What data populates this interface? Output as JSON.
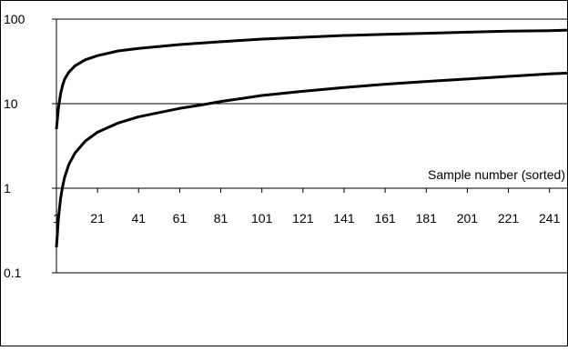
{
  "chart_data": {
    "type": "line",
    "title": "",
    "xlabel": "Sample number (sorted)",
    "ylabel": "",
    "y_scale": "log",
    "ylim": [
      0.1,
      100
    ],
    "xlim": [
      1,
      250
    ],
    "y_ticks": [
      {
        "value": 100,
        "label": "100"
      },
      {
        "value": 10,
        "label": "10"
      },
      {
        "value": 1,
        "label": "1"
      },
      {
        "value": 0.1,
        "label": "0.1"
      }
    ],
    "x_ticks": [
      {
        "value": 1,
        "label": "1"
      },
      {
        "value": 21,
        "label": "21"
      },
      {
        "value": 41,
        "label": "41"
      },
      {
        "value": 61,
        "label": "61"
      },
      {
        "value": 81,
        "label": "81"
      },
      {
        "value": 101,
        "label": "101"
      },
      {
        "value": 121,
        "label": "121"
      },
      {
        "value": 141,
        "label": "141"
      },
      {
        "value": 161,
        "label": "161"
      },
      {
        "value": 181,
        "label": "181"
      },
      {
        "value": 201,
        "label": "201"
      },
      {
        "value": 221,
        "label": "221"
      },
      {
        "value": 241,
        "label": "241"
      }
    ],
    "x_axis_crosses_y_at": 1,
    "grid": "horizontal major gridlines",
    "legend": "none",
    "line_color": "#000000",
    "series": [
      {
        "x": [
          1,
          2,
          3,
          4,
          5,
          7,
          10,
          15,
          21,
          31,
          41,
          61,
          81,
          101,
          121,
          141,
          161,
          181,
          201,
          221,
          241,
          250
        ],
        "values": [
          5,
          9,
          13,
          16.5,
          19.5,
          23.5,
          28,
          33,
          37,
          42,
          45,
          50,
          54,
          58,
          61,
          64,
          66,
          68,
          70,
          72,
          73,
          74
        ]
      },
      {
        "x": [
          1,
          2,
          3,
          4,
          5,
          7,
          10,
          15,
          21,
          31,
          41,
          61,
          71,
          81,
          101,
          121,
          141,
          161,
          181,
          201,
          221,
          241,
          250
        ],
        "values": [
          0.2,
          0.45,
          0.75,
          1.05,
          1.35,
          1.9,
          2.6,
          3.6,
          4.6,
          5.9,
          7,
          8.8,
          9.6,
          10.6,
          12.5,
          14,
          15.5,
          17,
          18.3,
          19.6,
          21,
          22.5,
          23
        ]
      }
    ]
  }
}
